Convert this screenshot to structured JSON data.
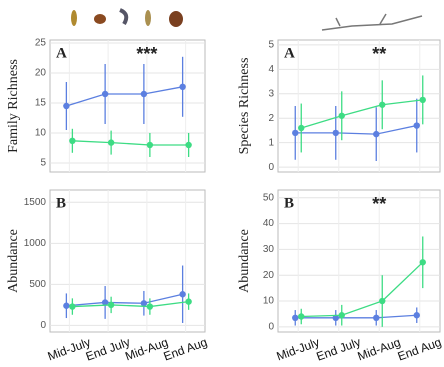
{
  "chart_data": [
    {
      "type": "line",
      "y_label": "Family Richness",
      "panel_label": "A",
      "annotation": "***",
      "ylim": [
        3.5,
        25.5
      ],
      "yticks": [
        5,
        10,
        15,
        20,
        25
      ],
      "grid": true,
      "series": [
        {
          "color": "#5b7fe0",
          "values": [
            14.5,
            16.5,
            16.5,
            17.7
          ],
          "errors": [
            4,
            5,
            5,
            5
          ]
        },
        {
          "color": "#3ddc84",
          "values": [
            8.7,
            8.4,
            8.0,
            8.0
          ],
          "errors": [
            2,
            2,
            2,
            2
          ]
        }
      ]
    },
    {
      "type": "line",
      "y_label": "Species Richness",
      "panel_label": "A",
      "annotation": "**",
      "ylim": [
        -0.2,
        5.2
      ],
      "yticks": [
        0,
        1,
        2,
        3,
        4,
        5
      ],
      "grid": true,
      "series": [
        {
          "color": "#5b7fe0",
          "values": [
            1.4,
            1.4,
            1.35,
            1.7
          ],
          "errors": [
            1.1,
            1.1,
            1.1,
            1.1
          ]
        },
        {
          "color": "#3ddc84",
          "values": [
            1.6,
            2.1,
            2.55,
            2.75
          ],
          "errors": [
            1,
            1,
            1,
            1
          ]
        }
      ]
    },
    {
      "type": "line",
      "y_label": "Abundance",
      "panel_label": "B",
      "categories": [
        "Mid-July",
        "End July",
        "Mid-Aug",
        "End Aug"
      ],
      "ylim": [
        -80,
        1650
      ],
      "yticks": [
        0,
        500,
        1000,
        1500
      ],
      "grid": true,
      "series": [
        {
          "color": "#5b7fe0",
          "values": [
            240,
            280,
            270,
            380
          ],
          "errors": [
            150,
            200,
            150,
            350
          ]
        },
        {
          "color": "#3ddc84",
          "values": [
            230,
            250,
            230,
            290
          ],
          "errors": [
            100,
            100,
            100,
            100
          ]
        }
      ]
    },
    {
      "type": "line",
      "y_label": "Abundance",
      "panel_label": "B",
      "annotation": "**",
      "categories": [
        "Mid-July",
        "End July",
        "Mid-Aug",
        "End Aug"
      ],
      "ylim": [
        -2,
        53
      ],
      "yticks": [
        0,
        10,
        20,
        30,
        40,
        50
      ],
      "grid": true,
      "series": [
        {
          "color": "#5b7fe0",
          "values": [
            3.5,
            3.5,
            3.5,
            4.5
          ],
          "errors": [
            3,
            3,
            3,
            3
          ]
        },
        {
          "color": "#3ddc84",
          "values": [
            4,
            4.5,
            10,
            25
          ],
          "errors": [
            3,
            4,
            10,
            10
          ]
        }
      ]
    }
  ]
}
